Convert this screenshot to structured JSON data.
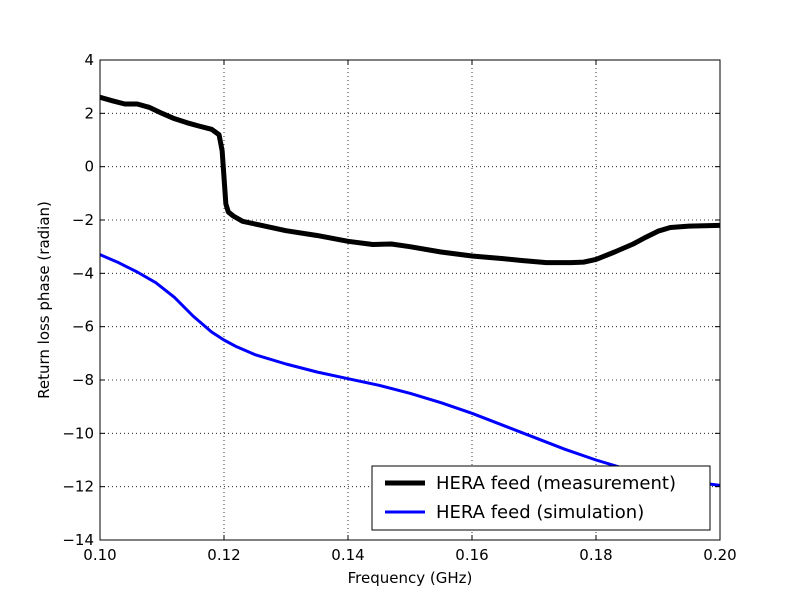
{
  "chart_data": {
    "type": "line",
    "xlabel": "Frequency (GHz)",
    "ylabel": "Return loss phase (radian)",
    "xlim": [
      0.1,
      0.2
    ],
    "ylim": [
      -14,
      4
    ],
    "xticks": [
      "0.10",
      "0.12",
      "0.14",
      "0.16",
      "0.18",
      "0.20"
    ],
    "xtick_values": [
      0.1,
      0.12,
      0.14,
      0.16,
      0.18,
      0.2
    ],
    "yticks": [
      "4",
      "2",
      "0",
      "−2",
      "−4",
      "−6",
      "−8",
      "−10",
      "−12",
      "−14"
    ],
    "ytick_values": [
      4,
      2,
      0,
      -2,
      -4,
      -6,
      -8,
      -10,
      -12,
      -14
    ],
    "grid": true,
    "legend_position": "bottom-right",
    "series": [
      {
        "name": "HERA feed (measurement)",
        "color": "#000000",
        "line_width": "thick",
        "x": [
          0.1,
          0.102,
          0.104,
          0.106,
          0.108,
          0.11,
          0.112,
          0.114,
          0.116,
          0.118,
          0.1192,
          0.1197,
          0.12,
          0.1203,
          0.1207,
          0.1215,
          0.123,
          0.126,
          0.13,
          0.135,
          0.14,
          0.144,
          0.147,
          0.15,
          0.155,
          0.16,
          0.165,
          0.168,
          0.172,
          0.176,
          0.178,
          0.18,
          0.183,
          0.186,
          0.188,
          0.19,
          0.192,
          0.195,
          0.2
        ],
        "y": [
          2.6,
          2.47,
          2.35,
          2.35,
          2.22,
          2.0,
          1.8,
          1.65,
          1.52,
          1.4,
          1.2,
          0.6,
          -0.4,
          -1.4,
          -1.7,
          -1.85,
          -2.05,
          -2.2,
          -2.4,
          -2.58,
          -2.8,
          -2.92,
          -2.9,
          -3.0,
          -3.2,
          -3.35,
          -3.45,
          -3.52,
          -3.6,
          -3.6,
          -3.58,
          -3.48,
          -3.2,
          -2.9,
          -2.65,
          -2.42,
          -2.28,
          -2.23,
          -2.2
        ]
      },
      {
        "name": "HERA feed (simulation)",
        "color": "#0000ff",
        "line_width": "normal",
        "x": [
          0.1,
          0.103,
          0.106,
          0.109,
          0.112,
          0.115,
          0.118,
          0.12,
          0.122,
          0.125,
          0.13,
          0.135,
          0.14,
          0.145,
          0.15,
          0.155,
          0.16,
          0.165,
          0.17,
          0.175,
          0.18,
          0.185,
          0.19,
          0.195,
          0.2
        ],
        "y": [
          -3.3,
          -3.6,
          -3.95,
          -4.35,
          -4.9,
          -5.6,
          -6.2,
          -6.5,
          -6.75,
          -7.05,
          -7.4,
          -7.7,
          -7.95,
          -8.2,
          -8.5,
          -8.85,
          -9.25,
          -9.7,
          -10.15,
          -10.6,
          -11.0,
          -11.35,
          -11.6,
          -11.8,
          -11.95
        ]
      }
    ]
  }
}
